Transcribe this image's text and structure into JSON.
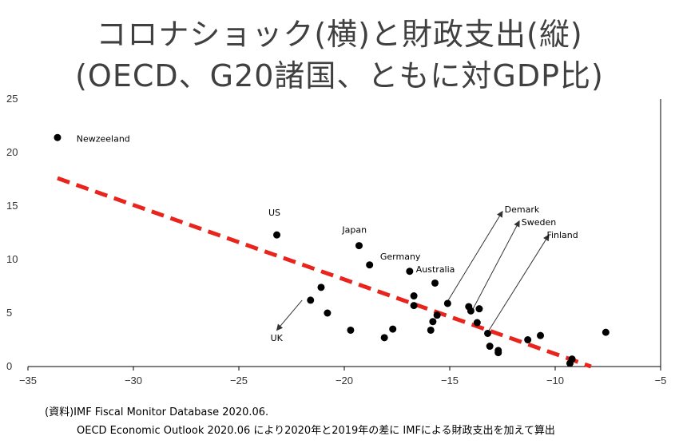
{
  "title_line1": "コロナショック(横)と財政支出(縦)",
  "title_line2": "(OECD、G20諸国、ともに対GDP比)",
  "source_line1": "(資料)IMF Fiscal Monitor Database 2020.06.",
  "source_line2": "OECD Economic Outlook 2020.06 により2020年と2019年の差に IMFによる財政支出を加えて算出",
  "chart_data": {
    "type": "scatter",
    "title": "コロナショック(横)と財政支出(縦)",
    "subtitle": "(OECD、G20諸国、ともに対GDP比)",
    "xlim": [
      -35,
      -5
    ],
    "ylim": [
      0,
      25
    ],
    "xticks": [
      -35,
      -30,
      -25,
      -20,
      -15,
      -10,
      -5
    ],
    "yticks": [
      0,
      5,
      10,
      15,
      20,
      25
    ],
    "xtick_labels": [
      "−35",
      "−30",
      "−25",
      "−20",
      "−15",
      "−10",
      "−5"
    ],
    "ytick_labels": [
      "0",
      "5",
      "10",
      "15",
      "20",
      "25"
    ],
    "grid": false,
    "points": [
      {
        "x": -33.6,
        "y": 21.4
      },
      {
        "x": -23.2,
        "y": 12.3
      },
      {
        "x": -19.3,
        "y": 11.3
      },
      {
        "x": -18.8,
        "y": 9.5
      },
      {
        "x": -16.9,
        "y": 8.9
      },
      {
        "x": -15.7,
        "y": 7.8
      },
      {
        "x": -21.1,
        "y": 7.4
      },
      {
        "x": -21.6,
        "y": 6.2
      },
      {
        "x": -20.8,
        "y": 5.0
      },
      {
        "x": -16.7,
        "y": 6.6
      },
      {
        "x": -16.7,
        "y": 5.7
      },
      {
        "x": -15.1,
        "y": 5.9
      },
      {
        "x": -15.6,
        "y": 4.8
      },
      {
        "x": -15.8,
        "y": 4.2
      },
      {
        "x": -15.9,
        "y": 3.4
      },
      {
        "x": -14.1,
        "y": 5.6
      },
      {
        "x": -14.0,
        "y": 5.2
      },
      {
        "x": -13.6,
        "y": 5.4
      },
      {
        "x": -13.7,
        "y": 4.1
      },
      {
        "x": -13.2,
        "y": 3.1
      },
      {
        "x": -19.7,
        "y": 3.4
      },
      {
        "x": -17.7,
        "y": 3.5
      },
      {
        "x": -18.1,
        "y": 2.7
      },
      {
        "x": -13.1,
        "y": 1.9
      },
      {
        "x": -12.7,
        "y": 1.5
      },
      {
        "x": -12.7,
        "y": 1.3
      },
      {
        "x": -11.3,
        "y": 2.5
      },
      {
        "x": -10.7,
        "y": 2.9
      },
      {
        "x": -9.2,
        "y": 0.7
      },
      {
        "x": -9.3,
        "y": 0.3
      },
      {
        "x": -7.6,
        "y": 3.2
      }
    ],
    "labels": [
      {
        "text": "Newzeeland",
        "x": -32.7,
        "y": 21.0
      },
      {
        "text": "US",
        "x": -23.6,
        "y": 14.1
      },
      {
        "text": "Japan",
        "x": -20.1,
        "y": 12.5
      },
      {
        "text": "Germany",
        "x": -18.3,
        "y": 10.0
      },
      {
        "text": "Australia",
        "x": -16.6,
        "y": 8.8
      },
      {
        "text": "UK",
        "x": -23.5,
        "y": 2.4
      },
      {
        "text": "Demark",
        "x": -12.4,
        "y": 14.4
      },
      {
        "text": "Sweden",
        "x": -11.6,
        "y": 13.2
      },
      {
        "text": "Finland",
        "x": -10.4,
        "y": 12.0
      }
    ],
    "arrows": [
      {
        "from": [
          -22.0,
          6.2
        ],
        "to": [
          -23.2,
          3.4
        ]
      },
      {
        "from": [
          -15.1,
          6.1
        ],
        "to": [
          -12.5,
          14.5
        ]
      },
      {
        "from": [
          -14.0,
          5.0
        ],
        "to": [
          -11.7,
          13.6
        ]
      },
      {
        "from": [
          -13.2,
          3.2
        ],
        "to": [
          -10.3,
          12.3
        ]
      }
    ],
    "trendline": {
      "x": [
        -33.6,
        -8.3
      ],
      "y": [
        17.6,
        0.0
      ],
      "color": "#e8241c",
      "style": "dashed"
    },
    "point_color": "#000000"
  }
}
